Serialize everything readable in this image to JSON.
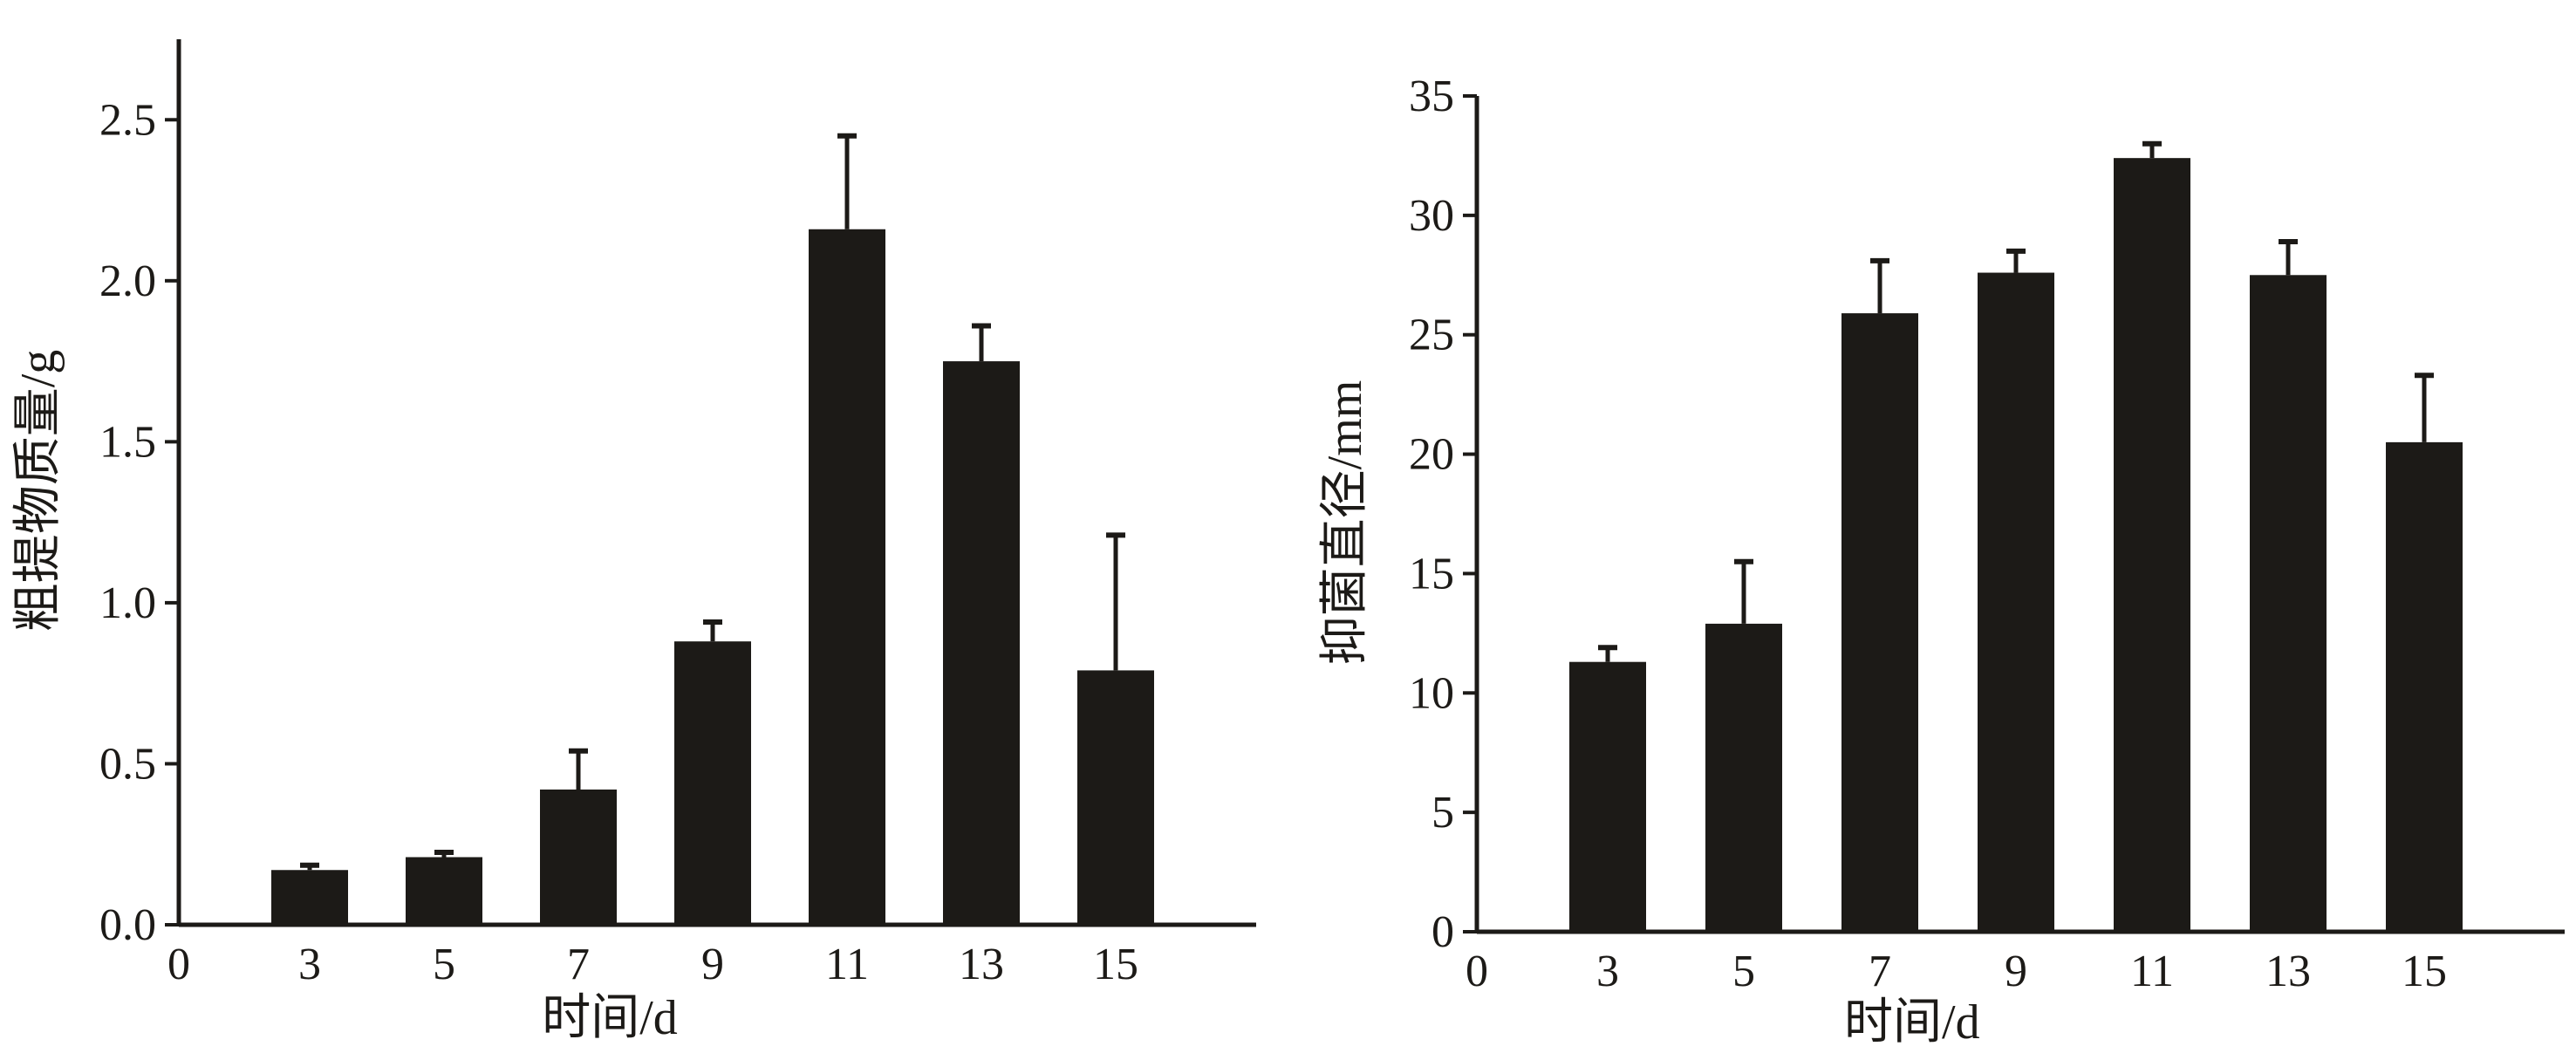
{
  "chart_data": [
    {
      "type": "bar",
      "categories": [
        "3",
        "5",
        "7",
        "9",
        "11",
        "13",
        "15"
      ],
      "values": [
        0.17,
        0.21,
        0.42,
        0.88,
        2.16,
        1.75,
        0.79
      ],
      "errors": [
        0.015,
        0.015,
        0.12,
        0.06,
        0.29,
        0.11,
        0.42
      ],
      "xlabel": "时间/d",
      "ylabel": "粗提物质量/g",
      "x_origin_label": "0",
      "xlim": [
        0,
        16
      ],
      "ylim": [
        0,
        2.75
      ],
      "yticks": [
        0.0,
        0.5,
        1.0,
        1.5,
        2.0,
        2.5
      ],
      "ytick_labels": [
        "0.0",
        "0.5",
        "1.0",
        "1.5",
        "2.0",
        "2.5"
      ],
      "bar_color": "#1c1a17",
      "grid": false
    },
    {
      "type": "bar",
      "categories": [
        "3",
        "5",
        "7",
        "9",
        "11",
        "13",
        "15"
      ],
      "values": [
        11.3,
        12.9,
        25.9,
        27.6,
        32.4,
        27.5,
        20.5
      ],
      "errors": [
        0.6,
        2.6,
        2.2,
        0.9,
        0.6,
        1.4,
        2.8
      ],
      "xlabel": "时间/d",
      "ylabel": "抑菌直径/mm",
      "x_origin_label": "0",
      "xlim": [
        0,
        16
      ],
      "ylim": [
        0,
        35
      ],
      "yticks": [
        0,
        5,
        10,
        15,
        20,
        25,
        30,
        35
      ],
      "ytick_labels": [
        "0",
        "5",
        "10",
        "15",
        "20",
        "25",
        "30",
        "35"
      ],
      "bar_color": "#1c1a17",
      "grid": false
    }
  ]
}
